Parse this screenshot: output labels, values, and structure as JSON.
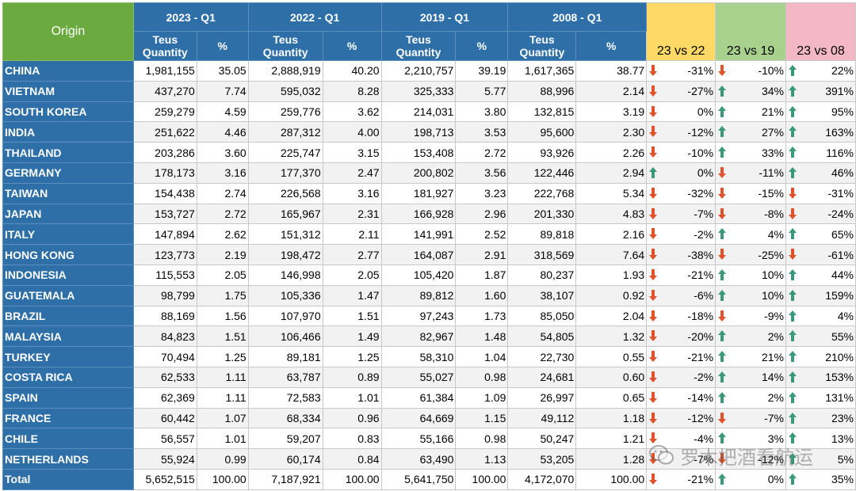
{
  "header": {
    "origin": "Origin",
    "periods": [
      "2023 - Q1",
      "2022 - Q1",
      "2019 - Q1",
      "2008 - Q1"
    ],
    "teus_label_line1": "Teus",
    "teus_label_line2": "Quantity",
    "pct_label": "%",
    "comparisons": [
      "23 vs 22",
      "23 vs 19",
      "23 vs 08"
    ]
  },
  "colors": {
    "up_arrow": "#3a9a78",
    "down_arrow": "#e0522c",
    "origin_header": "#6aaa3e",
    "period_header": "#2e6fa8"
  },
  "rows": [
    {
      "origin": "CHINA",
      "q23": "1,981,155",
      "p23": "35.05",
      "q22": "2,888,919",
      "p22": "40.20",
      "q19": "2,210,757",
      "p19": "39.19",
      "q08": "1,617,365",
      "p08": "38.77",
      "c1": "-31%",
      "c1_dir": "down",
      "c2": "-10%",
      "c2_dir": "down",
      "c3": "22%",
      "c3_dir": "up"
    },
    {
      "origin": "VIETNAM",
      "q23": "437,270",
      "p23": "7.74",
      "q22": "595,032",
      "p22": "8.28",
      "q19": "325,333",
      "p19": "5.77",
      "q08": "88,996",
      "p08": "2.14",
      "c1": "-27%",
      "c1_dir": "down",
      "c2": "34%",
      "c2_dir": "up",
      "c3": "391%",
      "c3_dir": "up"
    },
    {
      "origin": "SOUTH KOREA",
      "q23": "259,279",
      "p23": "4.59",
      "q22": "259,776",
      "p22": "3.62",
      "q19": "214,031",
      "p19": "3.80",
      "q08": "132,815",
      "p08": "3.19",
      "c1": "0%",
      "c1_dir": "down",
      "c2": "21%",
      "c2_dir": "up",
      "c3": "95%",
      "c3_dir": "up"
    },
    {
      "origin": "INDIA",
      "q23": "251,622",
      "p23": "4.46",
      "q22": "287,312",
      "p22": "4.00",
      "q19": "198,713",
      "p19": "3.53",
      "q08": "95,600",
      "p08": "2.30",
      "c1": "-12%",
      "c1_dir": "down",
      "c2": "27%",
      "c2_dir": "up",
      "c3": "163%",
      "c3_dir": "up"
    },
    {
      "origin": "THAILAND",
      "q23": "203,286",
      "p23": "3.60",
      "q22": "225,747",
      "p22": "3.15",
      "q19": "153,408",
      "p19": "2.72",
      "q08": "93,926",
      "p08": "2.26",
      "c1": "-10%",
      "c1_dir": "down",
      "c2": "33%",
      "c2_dir": "up",
      "c3": "116%",
      "c3_dir": "up"
    },
    {
      "origin": "GERMANY",
      "q23": "178,173",
      "p23": "3.16",
      "q22": "177,370",
      "p22": "2.47",
      "q19": "200,802",
      "p19": "3.56",
      "q08": "122,446",
      "p08": "2.94",
      "c1": "0%",
      "c1_dir": "up",
      "c2": "-11%",
      "c2_dir": "down",
      "c3": "46%",
      "c3_dir": "up"
    },
    {
      "origin": "TAIWAN",
      "q23": "154,438",
      "p23": "2.74",
      "q22": "226,568",
      "p22": "3.16",
      "q19": "181,927",
      "p19": "3.23",
      "q08": "222,768",
      "p08": "5.34",
      "c1": "-32%",
      "c1_dir": "down",
      "c2": "-15%",
      "c2_dir": "down",
      "c3": "-31%",
      "c3_dir": "down"
    },
    {
      "origin": "JAPAN",
      "q23": "153,727",
      "p23": "2.72",
      "q22": "165,967",
      "p22": "2.31",
      "q19": "166,928",
      "p19": "2.96",
      "q08": "201,330",
      "p08": "4.83",
      "c1": "-7%",
      "c1_dir": "down",
      "c2": "-8%",
      "c2_dir": "down",
      "c3": "-24%",
      "c3_dir": "down"
    },
    {
      "origin": "ITALY",
      "q23": "147,894",
      "p23": "2.62",
      "q22": "151,312",
      "p22": "2.11",
      "q19": "141,991",
      "p19": "2.52",
      "q08": "89,818",
      "p08": "2.16",
      "c1": "-2%",
      "c1_dir": "down",
      "c2": "4%",
      "c2_dir": "up",
      "c3": "65%",
      "c3_dir": "up"
    },
    {
      "origin": "HONG KONG",
      "q23": "123,773",
      "p23": "2.19",
      "q22": "198,472",
      "p22": "2.77",
      "q19": "164,087",
      "p19": "2.91",
      "q08": "318,569",
      "p08": "7.64",
      "c1": "-38%",
      "c1_dir": "down",
      "c2": "-25%",
      "c2_dir": "down",
      "c3": "-61%",
      "c3_dir": "down"
    },
    {
      "origin": "INDONESIA",
      "q23": "115,553",
      "p23": "2.05",
      "q22": "146,998",
      "p22": "2.05",
      "q19": "105,420",
      "p19": "1.87",
      "q08": "80,237",
      "p08": "1.93",
      "c1": "-21%",
      "c1_dir": "down",
      "c2": "10%",
      "c2_dir": "up",
      "c3": "44%",
      "c3_dir": "up"
    },
    {
      "origin": "GUATEMALA",
      "q23": "98,799",
      "p23": "1.75",
      "q22": "105,336",
      "p22": "1.47",
      "q19": "89,812",
      "p19": "1.60",
      "q08": "38,107",
      "p08": "0.92",
      "c1": "-6%",
      "c1_dir": "down",
      "c2": "10%",
      "c2_dir": "up",
      "c3": "159%",
      "c3_dir": "up"
    },
    {
      "origin": "BRAZIL",
      "q23": "88,169",
      "p23": "1.56",
      "q22": "107,970",
      "p22": "1.51",
      "q19": "97,243",
      "p19": "1.73",
      "q08": "85,050",
      "p08": "2.04",
      "c1": "-18%",
      "c1_dir": "down",
      "c2": "-9%",
      "c2_dir": "down",
      "c3": "4%",
      "c3_dir": "up"
    },
    {
      "origin": "MALAYSIA",
      "q23": "84,823",
      "p23": "1.51",
      "q22": "106,466",
      "p22": "1.49",
      "q19": "82,967",
      "p19": "1.48",
      "q08": "54,805",
      "p08": "1.32",
      "c1": "-20%",
      "c1_dir": "down",
      "c2": "2%",
      "c2_dir": "up",
      "c3": "55%",
      "c3_dir": "up"
    },
    {
      "origin": "TURKEY",
      "q23": "70,494",
      "p23": "1.25",
      "q22": "89,181",
      "p22": "1.25",
      "q19": "58,310",
      "p19": "1.04",
      "q08": "22,730",
      "p08": "0.55",
      "c1": "-21%",
      "c1_dir": "down",
      "c2": "21%",
      "c2_dir": "up",
      "c3": "210%",
      "c3_dir": "up"
    },
    {
      "origin": "COSTA RICA",
      "q23": "62,533",
      "p23": "1.11",
      "q22": "63,787",
      "p22": "0.89",
      "q19": "55,027",
      "p19": "0.98",
      "q08": "24,681",
      "p08": "0.60",
      "c1": "-2%",
      "c1_dir": "down",
      "c2": "14%",
      "c2_dir": "up",
      "c3": "153%",
      "c3_dir": "up"
    },
    {
      "origin": "SPAIN",
      "q23": "62,369",
      "p23": "1.11",
      "q22": "72,583",
      "p22": "1.01",
      "q19": "61,384",
      "p19": "1.09",
      "q08": "26,997",
      "p08": "0.65",
      "c1": "-14%",
      "c1_dir": "down",
      "c2": "2%",
      "c2_dir": "up",
      "c3": "131%",
      "c3_dir": "up"
    },
    {
      "origin": "FRANCE",
      "q23": "60,442",
      "p23": "1.07",
      "q22": "68,334",
      "p22": "0.96",
      "q19": "64,669",
      "p19": "1.15",
      "q08": "49,112",
      "p08": "1.18",
      "c1": "-12%",
      "c1_dir": "down",
      "c2": "-7%",
      "c2_dir": "down",
      "c3": "23%",
      "c3_dir": "up"
    },
    {
      "origin": "CHILE",
      "q23": "56,557",
      "p23": "1.01",
      "q22": "59,207",
      "p22": "0.83",
      "q19": "55,166",
      "p19": "0.98",
      "q08": "50,247",
      "p08": "1.21",
      "c1": "-4%",
      "c1_dir": "down",
      "c2": "3%",
      "c2_dir": "up",
      "c3": "13%",
      "c3_dir": "up"
    },
    {
      "origin": "NETHERLANDS",
      "q23": "55,924",
      "p23": "0.99",
      "q22": "60,174",
      "p22": "0.84",
      "q19": "63,490",
      "p19": "1.13",
      "q08": "53,205",
      "p08": "1.28",
      "c1": "-7%",
      "c1_dir": "down",
      "c2": "-12%",
      "c2_dir": "down",
      "c3": "5%",
      "c3_dir": "up"
    },
    {
      "origin": "Total",
      "q23": "5,652,515",
      "p23": "100.00",
      "q22": "7,187,921",
      "p22": "100.00",
      "q19": "5,641,750",
      "p19": "100.00",
      "q08": "4,172,070",
      "p08": "100.00",
      "c1": "-21%",
      "c1_dir": "down",
      "c2": "0%",
      "c2_dir": "up",
      "c3": "35%",
      "c3_dir": "up"
    }
  ],
  "watermark": {
    "text": "罗木把酒看航运",
    "icon": "wechat-icon"
  }
}
